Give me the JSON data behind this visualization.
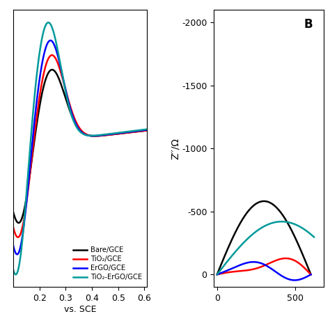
{
  "panel_A": {
    "xlabel": "vs. SCE",
    "xlim": [
      0.1,
      0.61
    ],
    "xticks": [
      0.2,
      0.3,
      0.4,
      0.5,
      0.6
    ],
    "colors": {
      "Bare": "#000000",
      "TiO2": "#ff0000",
      "ErGO": "#0000ff",
      "TiO2_ErGO": "#009999"
    },
    "legend": [
      "Bare/GCE",
      "TiO₂/GCE",
      "ErGO/GCE",
      "TiO₂-ErGO/GCE"
    ]
  },
  "panel_B": {
    "ylabel": "Z′′/Ω",
    "ylim": [
      100,
      -2100
    ],
    "xlim": [
      -20,
      680
    ],
    "yticks": [
      0,
      -500,
      -1000,
      -1500,
      -2000
    ],
    "xticks": [
      0,
      500
    ],
    "label_B": "B",
    "colors": {
      "Bare": "#000000",
      "TiO2": "#ff0000",
      "ErGO": "#0000ff",
      "TiO2_ErGO": "#009999"
    }
  },
  "background": "#ffffff",
  "lw": 1.8
}
